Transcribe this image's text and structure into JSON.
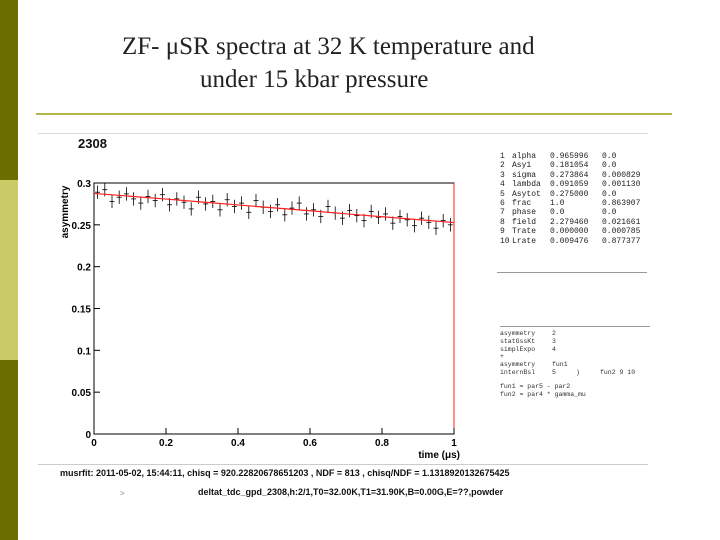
{
  "colors": {
    "stripe_dark": "#6b6f00",
    "stripe_light": "#c9cc66",
    "rule": "#b5b54a",
    "data": "#000000",
    "fit": "#ff2020"
  },
  "title": {
    "line1": "ZF- μSR spectra at 32 K temperature and",
    "line2": "under 15 kbar pressure"
  },
  "chart_data": {
    "type": "scatter",
    "run_number": "2308",
    "xlabel": "time (μs)",
    "ylabel": "asymmetry",
    "xlim": [
      0,
      1
    ],
    "ylim": [
      0,
      0.3
    ],
    "x_ticks": [
      "0",
      "0.2",
      "0.4",
      "0.6",
      "0.8",
      "1"
    ],
    "y_ticks": [
      "0",
      "0.05",
      "0.1",
      "0.15",
      "0.2",
      "0.25",
      "0.3"
    ],
    "grid": false,
    "series": [
      {
        "x": [
          0.01,
          0.03,
          0.05,
          0.07,
          0.09,
          0.11,
          0.13,
          0.15,
          0.17,
          0.19,
          0.21,
          0.23,
          0.25,
          0.27,
          0.29,
          0.31,
          0.33,
          0.35,
          0.37,
          0.39,
          0.41,
          0.43,
          0.45,
          0.47,
          0.49,
          0.51,
          0.53,
          0.55,
          0.57,
          0.59,
          0.61,
          0.63,
          0.65,
          0.67,
          0.69,
          0.71,
          0.73,
          0.75,
          0.77,
          0.79,
          0.81,
          0.83,
          0.85,
          0.87,
          0.89,
          0.91,
          0.93,
          0.95,
          0.97,
          0.99
        ],
        "y": [
          0.289,
          0.292,
          0.278,
          0.283,
          0.287,
          0.281,
          0.276,
          0.284,
          0.279,
          0.286,
          0.274,
          0.281,
          0.277,
          0.269,
          0.283,
          0.275,
          0.278,
          0.268,
          0.28,
          0.272,
          0.276,
          0.265,
          0.279,
          0.271,
          0.266,
          0.274,
          0.262,
          0.27,
          0.276,
          0.263,
          0.268,
          0.26,
          0.272,
          0.264,
          0.258,
          0.267,
          0.261,
          0.255,
          0.266,
          0.259,
          0.263,
          0.252,
          0.26,
          0.256,
          0.249,
          0.258,
          0.253,
          0.246,
          0.255,
          0.25
        ],
        "yerr": 0.008
      }
    ],
    "fit_curve": {
      "x": [
        0.0,
        0.1,
        0.2,
        0.3,
        0.4,
        0.5,
        0.6,
        0.7,
        0.8,
        0.9,
        1.0
      ],
      "y": [
        0.2875,
        0.2842,
        0.2808,
        0.2773,
        0.2738,
        0.2703,
        0.2668,
        0.2632,
        0.2597,
        0.2562,
        0.2527
      ]
    }
  },
  "params": [
    {
      "n": "1",
      "name": "alpha",
      "value": "0.965996",
      "err": "0.0"
    },
    {
      "n": "2",
      "name": "Asy1",
      "value": "0.181054",
      "err": "0.0"
    },
    {
      "n": "3",
      "name": "sigma",
      "value": "0.273864",
      "err": "0.000829"
    },
    {
      "n": "4",
      "name": "lambda",
      "value": "0.091059",
      "err": "0.001130"
    },
    {
      "n": "5",
      "name": "Asytot",
      "value": "0.275000",
      "err": "0.0"
    },
    {
      "n": "6",
      "name": "frac",
      "value": "1.0",
      "err": "0.863907"
    },
    {
      "n": "7",
      "name": "phase",
      "value": "0.0",
      "err": "0.0"
    },
    {
      "n": "8",
      "name": "field",
      "value": "2.279460",
      "err": "0.021661"
    },
    {
      "n": "9",
      "name": "Trate",
      "value": "0.000000",
      "err": "0.000785"
    },
    {
      "n": "10",
      "name": "Lrate",
      "value": "0.009476",
      "err": "0.877377"
    }
  ],
  "commands": [
    {
      "a": "asymmetry",
      "b": "2",
      "c": "",
      "d": ""
    },
    {
      "a": "statGssKt",
      "b": "3",
      "c": "",
      "d": ""
    },
    {
      "a": "simplExpo",
      "b": "4",
      "c": "",
      "d": ""
    },
    {
      "a": "+",
      "b": "",
      "c": "",
      "d": ""
    },
    {
      "a": "asymmetry",
      "b": "fun1",
      "c": "",
      "d": ""
    },
    {
      "a": "internBsl",
      "b": "5",
      "c": ")",
      "d": "fun2  9  10"
    }
  ],
  "functions": [
    "fun1 = par5 - par2",
    "fun2 = par4 * gamma_mu"
  ],
  "fit_info": "musrfit: 2011-05-02, 15:44:11, chisq = 920.22820678651203 , NDF = 813 , chisq/NDF = 1.1318920132675425",
  "run_info": "deltat_tdc_gpd_2308,h:2/1,T0=32.00K,T1=31.90K,B=0.00G,E=??,powder",
  "marker": ">"
}
